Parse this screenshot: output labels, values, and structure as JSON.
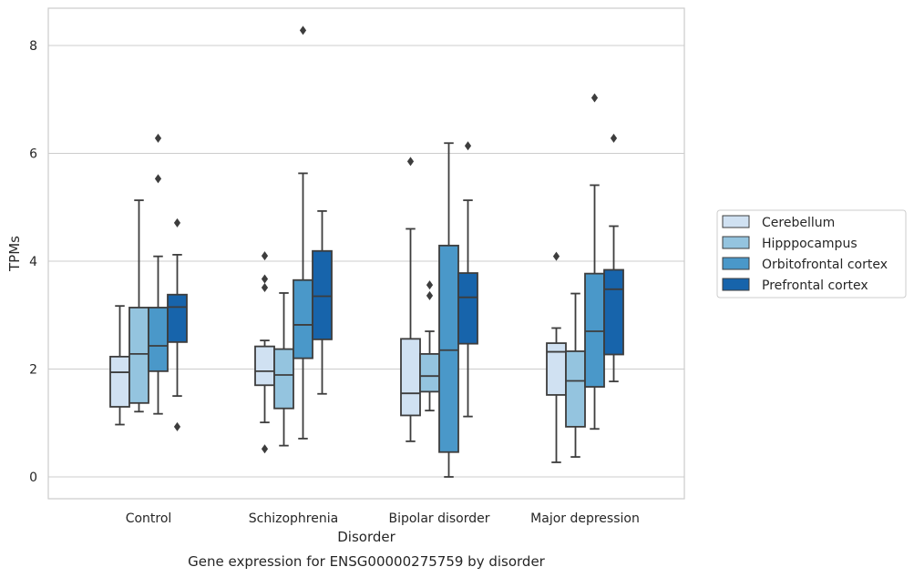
{
  "caption": "Gene expression for ENSG00000275759 by disorder",
  "chart_data": {
    "type": "box",
    "title": "",
    "xlabel": "Disorder",
    "ylabel": "TPMs",
    "ylim": [
      -0.4,
      8.7
    ],
    "yticks": [
      0,
      2,
      4,
      6,
      8
    ],
    "grid": "horizontal",
    "legend_position": "right",
    "categories": [
      "Control",
      "Schizophrenia",
      "Bipolar disorder",
      "Major depression"
    ],
    "series": [
      {
        "name": "Cerebellum",
        "color": "#d0e1f2",
        "boxes": [
          {
            "whislo": 0.97,
            "q1": 1.3,
            "med": 1.94,
            "q3": 2.23,
            "whishi": 3.17,
            "fliers": []
          },
          {
            "whislo": 1.01,
            "q1": 1.7,
            "med": 1.96,
            "q3": 2.42,
            "whishi": 2.53,
            "fliers": [
              4.1,
              3.67,
              3.51,
              0.52
            ]
          },
          {
            "whislo": 0.66,
            "q1": 1.14,
            "med": 1.55,
            "q3": 2.56,
            "whishi": 4.6,
            "fliers": [
              5.85
            ]
          },
          {
            "whislo": 0.27,
            "q1": 1.52,
            "med": 2.32,
            "q3": 2.48,
            "whishi": 2.76,
            "fliers": [
              4.09
            ]
          }
        ]
      },
      {
        "name": "Hipppocampus",
        "color": "#94c4df",
        "boxes": [
          {
            "whislo": 1.21,
            "q1": 1.37,
            "med": 2.28,
            "q3": 3.14,
            "whishi": 5.13,
            "fliers": []
          },
          {
            "whislo": 0.58,
            "q1": 1.27,
            "med": 1.89,
            "q3": 2.37,
            "whishi": 3.41,
            "fliers": []
          },
          {
            "whislo": 1.23,
            "q1": 1.58,
            "med": 1.87,
            "q3": 2.28,
            "whishi": 2.7,
            "fliers": [
              3.56,
              3.36
            ]
          },
          {
            "whislo": 0.37,
            "q1": 0.93,
            "med": 1.78,
            "q3": 2.33,
            "whishi": 3.4,
            "fliers": []
          }
        ]
      },
      {
        "name": "Orbitofrontal cortex",
        "color": "#4a98c9",
        "boxes": [
          {
            "whislo": 1.17,
            "q1": 1.96,
            "med": 2.43,
            "q3": 3.14,
            "whishi": 4.09,
            "fliers": [
              6.28,
              5.53
            ]
          },
          {
            "whislo": 0.71,
            "q1": 2.2,
            "med": 2.82,
            "q3": 3.65,
            "whishi": 5.63,
            "fliers": [
              8.28
            ]
          },
          {
            "whislo": 0.0,
            "q1": 0.46,
            "med": 2.35,
            "q3": 4.29,
            "whishi": 6.19,
            "fliers": []
          },
          {
            "whislo": 0.89,
            "q1": 1.67,
            "med": 2.7,
            "q3": 3.77,
            "whishi": 5.41,
            "fliers": [
              7.03
            ]
          }
        ]
      },
      {
        "name": "Prefrontal cortex",
        "color": "#1764ab",
        "boxes": [
          {
            "whislo": 1.5,
            "q1": 2.5,
            "med": 3.15,
            "q3": 3.38,
            "whishi": 4.12,
            "fliers": [
              4.71,
              0.93
            ]
          },
          {
            "whislo": 1.54,
            "q1": 2.55,
            "med": 3.35,
            "q3": 4.19,
            "whishi": 4.93,
            "fliers": []
          },
          {
            "whislo": 1.12,
            "q1": 2.47,
            "med": 3.33,
            "q3": 3.78,
            "whishi": 5.13,
            "fliers": [
              6.14
            ]
          },
          {
            "whislo": 1.77,
            "q1": 2.27,
            "med": 3.48,
            "q3": 3.84,
            "whishi": 4.65,
            "fliers": [
              6.28
            ]
          }
        ]
      }
    ]
  }
}
